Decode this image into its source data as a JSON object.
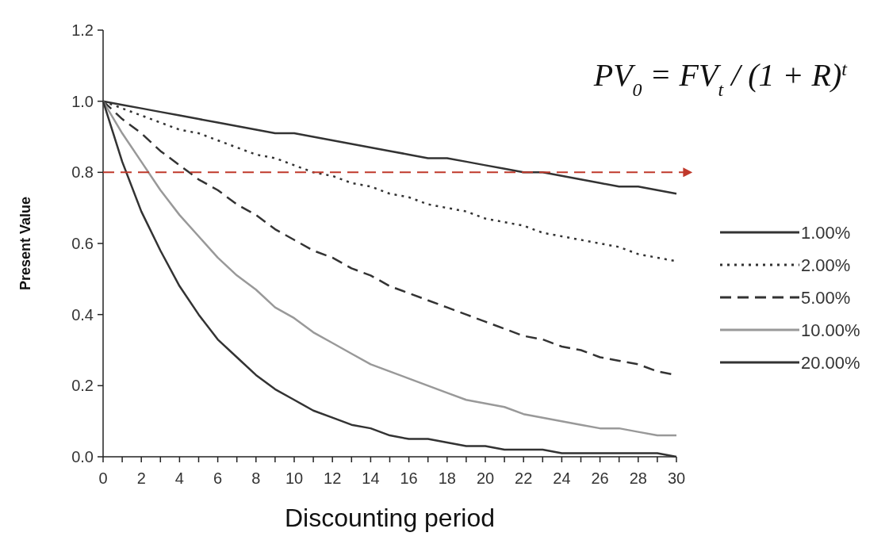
{
  "chart_data": {
    "type": "line",
    "xlabel": "Discounting period",
    "ylabel": "Present Value",
    "x": [
      0,
      1,
      2,
      3,
      4,
      5,
      6,
      7,
      8,
      9,
      10,
      11,
      12,
      13,
      14,
      15,
      16,
      17,
      18,
      19,
      20,
      21,
      22,
      23,
      24,
      25,
      26,
      27,
      28,
      29,
      30
    ],
    "series": [
      {
        "name": "1.00%",
        "color": "#333333",
        "line_style": "solid",
        "values": [
          1,
          0.99,
          0.98,
          0.97,
          0.96,
          0.95,
          0.94,
          0.93,
          0.92,
          0.91,
          0.91,
          0.9,
          0.89,
          0.88,
          0.87,
          0.86,
          0.85,
          0.84,
          0.84,
          0.83,
          0.82,
          0.81,
          0.8,
          0.8,
          0.79,
          0.78,
          0.77,
          0.76,
          0.76,
          0.75,
          0.74
        ]
      },
      {
        "name": "2.00%",
        "color": "#333333",
        "line_style": "dotted",
        "values": [
          1,
          0.98,
          0.96,
          0.94,
          0.92,
          0.91,
          0.89,
          0.87,
          0.85,
          0.84,
          0.82,
          0.8,
          0.79,
          0.77,
          0.76,
          0.74,
          0.73,
          0.71,
          0.7,
          0.69,
          0.67,
          0.66,
          0.65,
          0.63,
          0.62,
          0.61,
          0.6,
          0.59,
          0.57,
          0.56,
          0.55
        ]
      },
      {
        "name": "5.00%",
        "color": "#333333",
        "line_style": "dashed",
        "values": [
          1,
          0.95,
          0.91,
          0.86,
          0.82,
          0.78,
          0.75,
          0.71,
          0.68,
          0.64,
          0.61,
          0.58,
          0.56,
          0.53,
          0.51,
          0.48,
          0.46,
          0.44,
          0.42,
          0.4,
          0.38,
          0.36,
          0.34,
          0.33,
          0.31,
          0.3,
          0.28,
          0.27,
          0.26,
          0.24,
          0.23
        ]
      },
      {
        "name": "10.00%",
        "color": "#999999",
        "line_style": "solid",
        "values": [
          1,
          0.91,
          0.83,
          0.75,
          0.68,
          0.62,
          0.56,
          0.51,
          0.47,
          0.42,
          0.39,
          0.35,
          0.32,
          0.29,
          0.26,
          0.24,
          0.22,
          0.2,
          0.18,
          0.16,
          0.15,
          0.14,
          0.12,
          0.11,
          0.1,
          0.09,
          0.08,
          0.08,
          0.07,
          0.06,
          0.06
        ]
      },
      {
        "name": "20.00%",
        "color": "#333333",
        "line_style": "solid",
        "values": [
          1,
          0.83,
          0.69,
          0.58,
          0.48,
          0.4,
          0.33,
          0.28,
          0.23,
          0.19,
          0.16,
          0.13,
          0.11,
          0.09,
          0.08,
          0.06,
          0.05,
          0.05,
          0.04,
          0.03,
          0.03,
          0.02,
          0.02,
          0.02,
          0.01,
          0.01,
          0.01,
          0.01,
          0.01,
          0.01,
          0.0
        ]
      }
    ],
    "xlim": [
      0,
      30
    ],
    "xticks": [
      0,
      {
        "value": 1,
        "label": null
      },
      2,
      {
        "value": 3,
        "label": null
      },
      4,
      {
        "value": 5,
        "label": null
      },
      6,
      {
        "value": 7,
        "label": null
      },
      8,
      {
        "value": 9,
        "label": null
      },
      10,
      {
        "value": 11,
        "label": null
      },
      12,
      {
        "value": 13,
        "label": null
      },
      14,
      {
        "value": 15,
        "label": null
      },
      16,
      {
        "value": 17,
        "label": null
      },
      18,
      {
        "value": 19,
        "label": null
      },
      20,
      {
        "value": 21,
        "label": null
      },
      22,
      {
        "value": 23,
        "label": null
      },
      24,
      {
        "value": 25,
        "label": null
      },
      26,
      {
        "value": 27,
        "label": null
      },
      28,
      {
        "value": 29,
        "label": null
      },
      30
    ],
    "ylim": [
      0,
      1.2
    ],
    "yticks": [
      {
        "value": 0,
        "label": "0.0"
      },
      {
        "value": 0.2,
        "label": "0.2"
      },
      {
        "value": 0.4,
        "label": "0.4"
      },
      {
        "value": 0.6,
        "label": "0.6"
      },
      {
        "value": 0.8,
        "label": "0.8"
      },
      {
        "value": 1,
        "label": "1.0"
      },
      {
        "value": 1.2,
        "label": "1.2"
      }
    ],
    "ref_lines": [
      {
        "axis": "y",
        "value": 0.8,
        "color": "#c0392b",
        "line_style": "dashed"
      }
    ],
    "annotations": [
      "PV$_{0}$ = FV$_{t}$ / (1 + R)$^{t}$"
    ],
    "legend": "right",
    "grid": false,
    "marker": "none"
  }
}
